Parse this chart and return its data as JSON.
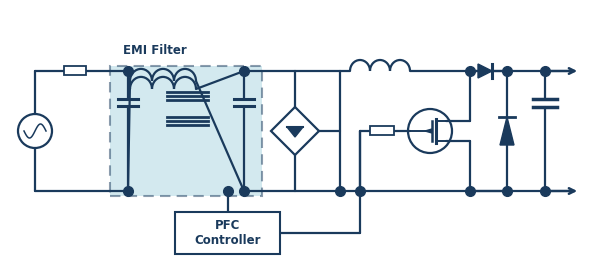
{
  "bg_color": "#ffffff",
  "line_color": "#1a3a5c",
  "emi_fill": "#a8d4e0",
  "emi_border": "#1a3a5c",
  "emi_label": "EMI Filter",
  "pfc_label": "PFC\nController",
  "lw": 1.6,
  "dot_r": 3.5
}
